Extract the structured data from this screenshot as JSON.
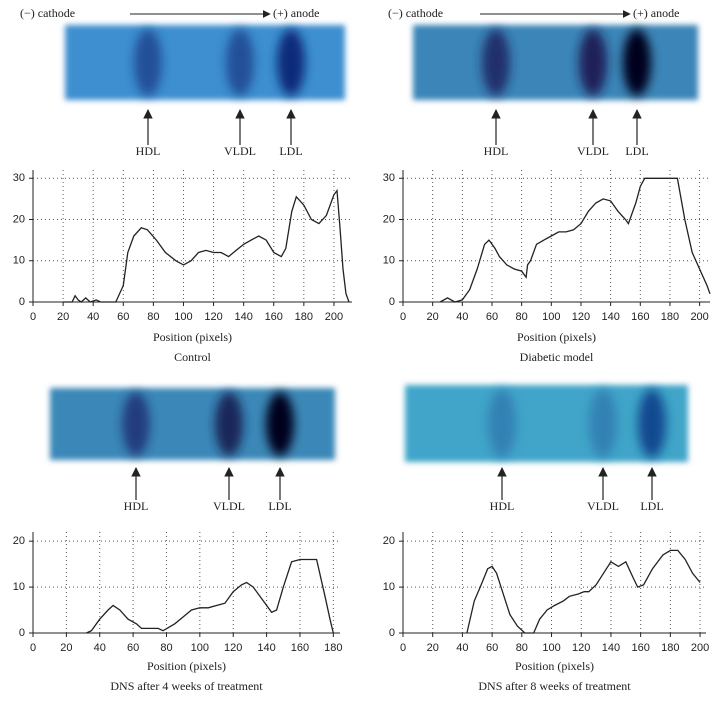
{
  "chart_data": [
    {
      "type": "line",
      "title": "Control",
      "xlabel": "Position (pixels)",
      "color": "#222222",
      "grid": true,
      "direction_labels": [
        "(−) cathode",
        "(+) anode"
      ],
      "annotations": [
        "HDL",
        "VLDL",
        "LDL"
      ],
      "xlim": [
        0,
        212
      ],
      "ylim": [
        0,
        32
      ],
      "xticks": [
        0,
        20,
        40,
        60,
        80,
        100,
        120,
        140,
        160,
        180,
        200
      ],
      "yticks": [
        0,
        10,
        20,
        30
      ],
      "x": [
        20,
        26,
        28,
        30,
        32,
        35,
        38,
        42,
        45,
        55,
        60,
        63,
        67,
        72,
        76,
        82,
        88,
        95,
        100,
        105,
        110,
        115,
        120,
        125,
        130,
        135,
        140,
        145,
        150,
        155,
        160,
        165,
        168,
        172,
        175,
        180,
        185,
        190,
        195,
        200,
        202,
        204,
        206,
        208,
        210
      ],
      "values": [
        0,
        0,
        1.5,
        0.5,
        0,
        1,
        0,
        0.5,
        0,
        0,
        4,
        12,
        16,
        18,
        17.5,
        15,
        12,
        10,
        9,
        10,
        12,
        12.5,
        12,
        12,
        11,
        12.5,
        14,
        15,
        16,
        15,
        12,
        11,
        13,
        22,
        25.5,
        23.5,
        20,
        19,
        21,
        26,
        27,
        18,
        8,
        2,
        0
      ]
    },
    {
      "type": "line",
      "title": "Diabetic model",
      "xlabel": "Position (pixels)",
      "color": "#222222",
      "grid": true,
      "direction_labels": [
        "(−) cathode",
        "(+) anode"
      ],
      "annotations": [
        "HDL",
        "VLDL",
        "LDL"
      ],
      "xlim": [
        0,
        207
      ],
      "ylim": [
        0,
        32
      ],
      "xticks": [
        0,
        20,
        40,
        60,
        80,
        100,
        120,
        140,
        160,
        180,
        200
      ],
      "yticks": [
        0,
        10,
        20,
        30
      ],
      "x": [
        25,
        30,
        35,
        40,
        45,
        50,
        55,
        58,
        62,
        65,
        70,
        75,
        80,
        83,
        84,
        86,
        90,
        95,
        100,
        105,
        110,
        115,
        120,
        125,
        130,
        135,
        140,
        145,
        150,
        152,
        157,
        160,
        163,
        170,
        180,
        185,
        190,
        195,
        200,
        205,
        207
      ],
      "values": [
        0,
        1,
        0,
        0.5,
        3,
        8,
        14,
        15,
        13,
        11,
        9,
        8,
        7.5,
        6,
        9,
        10,
        14,
        15,
        16,
        17,
        17,
        17.5,
        19,
        22,
        24,
        25,
        24.5,
        22,
        20,
        19,
        24,
        28,
        30,
        30,
        30,
        30,
        20,
        12,
        8,
        4,
        2
      ]
    },
    {
      "type": "line",
      "title": "DNS after 4 weeks of treatment",
      "xlabel": "Position (pixels)",
      "color": "#222222",
      "grid": true,
      "annotations": [
        "HDL",
        "VLDL",
        "LDL"
      ],
      "xlim": [
        0,
        184
      ],
      "ylim": [
        0,
        22
      ],
      "xticks": [
        0,
        20,
        40,
        60,
        80,
        100,
        120,
        140,
        160,
        180
      ],
      "yticks": [
        0,
        10,
        20
      ],
      "x": [
        32,
        35,
        40,
        45,
        48,
        52,
        57,
        62,
        65,
        75,
        78,
        85,
        90,
        95,
        100,
        105,
        110,
        115,
        120,
        125,
        128,
        132,
        138,
        143,
        146,
        150,
        155,
        160,
        170,
        175,
        178,
        180
      ],
      "values": [
        0,
        0.5,
        3,
        5,
        6,
        5,
        3,
        2,
        1,
        1,
        0.5,
        2,
        3.5,
        5,
        5.5,
        5.5,
        6,
        6.5,
        9,
        10.5,
        11,
        10,
        7,
        4.5,
        5,
        10,
        15.5,
        16,
        16,
        8,
        3,
        0
      ]
    },
    {
      "type": "line",
      "title": "DNS after 8 weeks of treatment",
      "xlabel": "Position (pixels)",
      "color": "#222222",
      "grid": true,
      "annotations": [
        "HDL",
        "VLDL",
        "LDL"
      ],
      "xlim": [
        0,
        204
      ],
      "ylim": [
        0,
        22
      ],
      "xticks": [
        0,
        20,
        40,
        60,
        80,
        100,
        120,
        140,
        160,
        180,
        200
      ],
      "yticks": [
        0,
        10,
        20
      ],
      "x": [
        43,
        48,
        52,
        57,
        60,
        63,
        67,
        72,
        77,
        82,
        88,
        92,
        97,
        102,
        108,
        112,
        118,
        122,
        125,
        130,
        135,
        140,
        145,
        150,
        155,
        158,
        162,
        168,
        175,
        180,
        185,
        190,
        195,
        200
      ],
      "values": [
        0,
        7,
        10,
        14,
        14.5,
        13,
        9,
        4,
        1.5,
        0,
        0,
        3,
        5,
        6,
        7,
        8,
        8.5,
        9,
        9,
        10.5,
        13,
        15.5,
        14.5,
        15.5,
        12,
        10,
        10.5,
        14,
        17,
        18,
        18,
        16,
        13,
        11
      ]
    }
  ]
}
